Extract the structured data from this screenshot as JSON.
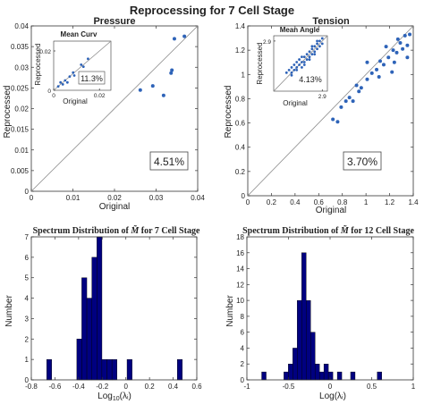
{
  "title": "Reprocessing for 7 Cell Stage",
  "colors": {
    "point": "#2e63b8",
    "bar": "#000080",
    "axis": "#333333",
    "diag": "#8a8a8a"
  },
  "chart_data": [
    {
      "type": "scatter",
      "title": "Pressure",
      "xlabel": "Original",
      "ylabel": "Reprocessed",
      "xlim": [
        0,
        0.04
      ],
      "ylim": [
        0,
        0.04
      ],
      "xticks": [
        0,
        0.01,
        0.02,
        0.03,
        0.04
      ],
      "yticks": [
        0,
        0.005,
        0.01,
        0.015,
        0.02,
        0.025,
        0.03,
        0.035,
        0.04
      ],
      "xtick_labels": [
        "0",
        "0.01",
        "0.02",
        "0.03",
        "0.04"
      ],
      "ytick_labels": [
        "0",
        "0.005",
        "0.01",
        "0.015",
        "0.02",
        "0.025",
        "0.03",
        "0.035",
        "0.04"
      ],
      "diagonal": true,
      "annotation": "4.51%",
      "points": [
        [
          0.0262,
          0.0245
        ],
        [
          0.0292,
          0.0255
        ],
        [
          0.0318,
          0.0232
        ],
        [
          0.0336,
          0.0286
        ],
        [
          0.0344,
          0.0369
        ],
        [
          0.0338,
          0.0293
        ],
        [
          0.0368,
          0.0375
        ]
      ],
      "inset": {
        "title": "Mean Curv",
        "xlabel": "Original",
        "ylabel": "Reprocessed",
        "xlim": [
          0,
          0.025
        ],
        "ylim": [
          0,
          0.025
        ],
        "xticks": [
          0,
          0.02
        ],
        "yticks": [
          0,
          0.02
        ],
        "xtick_labels": [
          "0",
          "0.02"
        ],
        "ytick_labels": [
          "0",
          "0.02"
        ],
        "annotation": "11.3%",
        "points": [
          [
            0.002,
            0.002
          ],
          [
            0.003,
            0.004
          ],
          [
            0.004,
            0.003
          ],
          [
            0.005,
            0.005
          ],
          [
            0.006,
            0.004
          ],
          [
            0.007,
            0.007
          ],
          [
            0.0085,
            0.009
          ],
          [
            0.009,
            0.0075
          ],
          [
            0.012,
            0.013
          ],
          [
            0.013,
            0.012
          ],
          [
            0.015,
            0.016
          ]
        ]
      }
    },
    {
      "type": "scatter",
      "title": "Tension",
      "xlabel": "Original",
      "ylabel": "Reprocessed",
      "xlim": [
        0,
        1.4
      ],
      "ylim": [
        0,
        1.4
      ],
      "xticks": [
        0,
        0.2,
        0.4,
        0.6,
        0.8,
        1,
        1.2,
        1.4
      ],
      "yticks": [
        0,
        0.2,
        0.4,
        0.6,
        0.8,
        1,
        1.2,
        1.4
      ],
      "xtick_labels": [
        "0",
        "0.2",
        "0.4",
        "0.6",
        "0.8",
        "1",
        "1.2",
        "1.4"
      ],
      "ytick_labels": [
        "0",
        "0.2",
        "0.4",
        "0.6",
        "0.8",
        "1",
        "1.2",
        "1.4"
      ],
      "diagonal": true,
      "annotation": "3.70%",
      "points": [
        [
          0.72,
          0.63
        ],
        [
          0.76,
          0.61
        ],
        [
          0.79,
          0.73
        ],
        [
          0.83,
          0.78
        ],
        [
          0.86,
          0.81
        ],
        [
          0.89,
          0.78
        ],
        [
          0.92,
          0.91
        ],
        [
          0.94,
          0.86
        ],
        [
          0.96,
          0.89
        ],
        [
          1.01,
          0.96
        ],
        [
          1.05,
          1.01
        ],
        [
          1.09,
          1.04
        ],
        [
          1.12,
          1.11
        ],
        [
          1.15,
          1.08
        ],
        [
          1.17,
          1.23
        ],
        [
          1.19,
          1.14
        ],
        [
          1.23,
          1.2
        ],
        [
          1.26,
          1.18
        ],
        [
          1.29,
          1.26
        ],
        [
          1.31,
          1.21
        ],
        [
          1.33,
          1.32
        ],
        [
          1.35,
          1.24
        ],
        [
          1.37,
          1.33
        ],
        [
          1.35,
          1.14
        ],
        [
          1.22,
          1.02
        ],
        [
          1.11,
          0.98
        ],
        [
          1.01,
          1.1
        ],
        [
          1.27,
          1.29
        ],
        [
          1.24,
          1.1
        ]
      ],
      "inset": {
        "title": "Mean Angle",
        "xlabel": "Original",
        "ylabel": "Reprocessed",
        "xlim": [
          2.71,
          2.92
        ],
        "ylim": [
          2.71,
          2.92
        ],
        "xticks": [
          2.9
        ],
        "yticks": [
          2.9
        ],
        "xtick_labels": [
          "2.9"
        ],
        "ytick_labels": [
          "2.9"
        ],
        "annotation": "4.13%",
        "points": [
          [
            2.76,
            2.78
          ],
          [
            2.77,
            2.79
          ],
          [
            2.78,
            2.78
          ],
          [
            2.78,
            2.8
          ],
          [
            2.79,
            2.79
          ],
          [
            2.79,
            2.81
          ],
          [
            2.8,
            2.8
          ],
          [
            2.8,
            2.82
          ],
          [
            2.81,
            2.81
          ],
          [
            2.81,
            2.83
          ],
          [
            2.82,
            2.82
          ],
          [
            2.82,
            2.8
          ],
          [
            2.83,
            2.84
          ],
          [
            2.83,
            2.82
          ],
          [
            2.84,
            2.83
          ],
          [
            2.84,
            2.85
          ],
          [
            2.85,
            2.84
          ],
          [
            2.85,
            2.86
          ],
          [
            2.86,
            2.85
          ],
          [
            2.86,
            2.87
          ],
          [
            2.87,
            2.86
          ],
          [
            2.87,
            2.88
          ],
          [
            2.88,
            2.87
          ],
          [
            2.88,
            2.89
          ],
          [
            2.89,
            2.88
          ],
          [
            2.89,
            2.9
          ],
          [
            2.9,
            2.89
          ],
          [
            2.9,
            2.91
          ],
          [
            2.8,
            2.79
          ],
          [
            2.83,
            2.81
          ],
          [
            2.85,
            2.83
          ],
          [
            2.87,
            2.85
          ],
          [
            2.78,
            2.77
          ],
          [
            2.82,
            2.84
          ],
          [
            2.86,
            2.88
          ],
          [
            2.88,
            2.9
          ]
        ]
      }
    },
    {
      "type": "bar",
      "title_prefix": "Spectrum Distribution of ",
      "title_symbol": "M̃",
      "title_suffix": " for 7 Cell Stage",
      "xlabel": "Log",
      "xlabel_sub": "10",
      "xlabel_arg": "(λᵢ)",
      "ylabel": "Number",
      "xlim": [
        -0.8,
        0.6
      ],
      "ylim": [
        0,
        7
      ],
      "xticks": [
        -0.8,
        -0.6,
        -0.4,
        -0.2,
        0,
        0.2,
        0.4,
        0.6
      ],
      "yticks": [
        0,
        1,
        2,
        3,
        4,
        5,
        6,
        7
      ],
      "xtick_labels": [
        "-0.8",
        "-0.6",
        "-0.4",
        "-0.2",
        "0",
        "0.2",
        "0.4",
        "0.6"
      ],
      "ytick_labels": [
        "0",
        "1",
        "2",
        "3",
        "4",
        "5",
        "6",
        "7"
      ],
      "bin_width": 0.0425,
      "bins": [
        [
          -0.67,
          1
        ],
        [
          -0.415,
          2
        ],
        [
          -0.373,
          5
        ],
        [
          -0.33,
          4
        ],
        [
          -0.288,
          6
        ],
        [
          -0.245,
          7
        ],
        [
          -0.203,
          1
        ],
        [
          -0.16,
          1
        ],
        [
          -0.118,
          1
        ],
        [
          0.01,
          1
        ],
        [
          0.435,
          1
        ]
      ]
    },
    {
      "type": "bar",
      "title_prefix": "Spectrum Distribution of ",
      "title_symbol": "M̃",
      "title_suffix": " for 12 Cell Stage",
      "xlabel": "Log",
      "xlabel_sub": "",
      "xlabel_arg": "(λᵢ)",
      "ylabel": "Number",
      "xlim": [
        -1,
        1
      ],
      "ylim": [
        0,
        18
      ],
      "xticks": [
        -1,
        -0.5,
        0,
        0.5,
        1
      ],
      "yticks": [
        0,
        2,
        4,
        6,
        8,
        10,
        12,
        14,
        16,
        18
      ],
      "xtick_labels": [
        "-1",
        "-0.5",
        "0",
        "0.5",
        "1"
      ],
      "ytick_labels": [
        "0",
        "2",
        "4",
        "6",
        "8",
        "10",
        "12",
        "14",
        "16",
        "18"
      ],
      "bin_width": 0.0535,
      "bins": [
        [
          -0.822,
          1
        ],
        [
          -0.555,
          1
        ],
        [
          -0.502,
          2
        ],
        [
          -0.448,
          4
        ],
        [
          -0.395,
          10
        ],
        [
          -0.341,
          16
        ],
        [
          -0.288,
          10
        ],
        [
          -0.234,
          6
        ],
        [
          -0.181,
          2
        ],
        [
          -0.127,
          1
        ],
        [
          -0.074,
          2
        ],
        [
          -0.02,
          1
        ],
        [
          0.087,
          1
        ],
        [
          0.247,
          1
        ],
        [
          0.567,
          1
        ]
      ]
    }
  ]
}
